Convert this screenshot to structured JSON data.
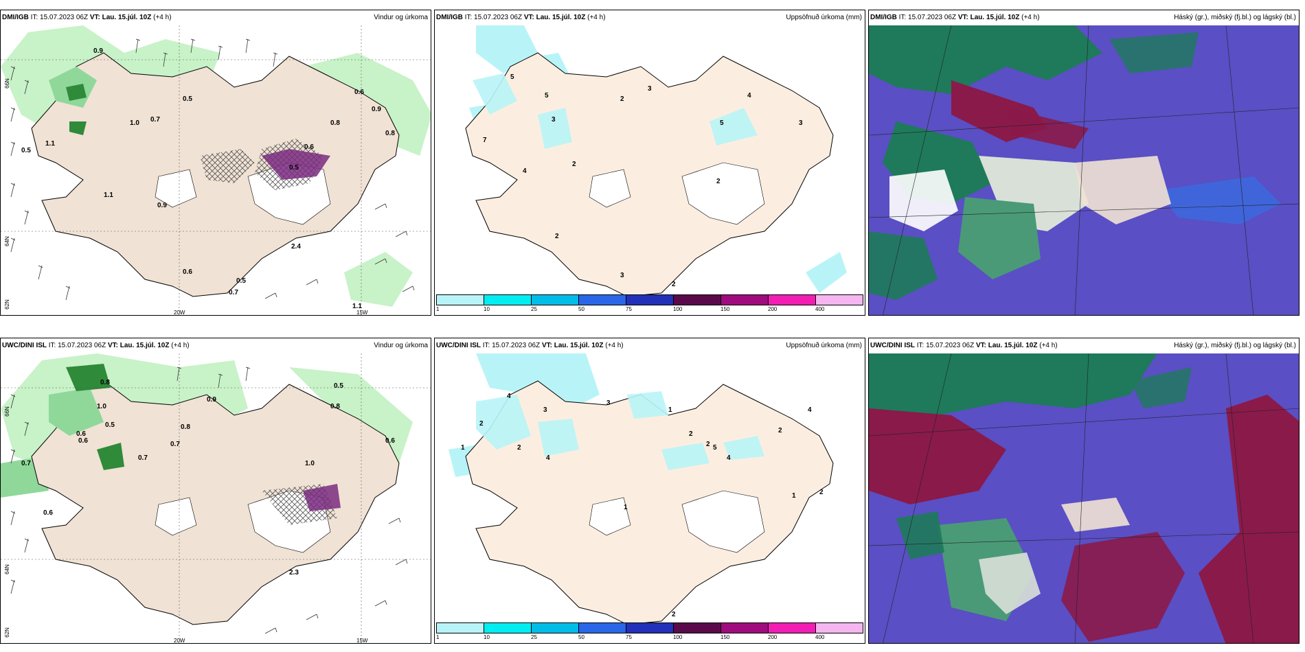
{
  "panels": [
    {
      "model": "DMI/IGB",
      "it_label": "IT:",
      "it": "15.07.2023 06Z",
      "vt_label": "VT:",
      "vt": "Lau. 15.júl. 10Z",
      "offset": "(+4 h)",
      "title": "Vindur og úrkoma"
    },
    {
      "model": "DMI/IGB",
      "it_label": "IT:",
      "it": "15.07.2023 06Z",
      "vt_label": "VT:",
      "vt": "Lau. 15.júl. 10Z",
      "offset": "(+4 h)",
      "title": "Uppsöfnuð úrkoma (mm)"
    },
    {
      "model": "DMI/IGB",
      "it_label": "IT:",
      "it": "15.07.2023 06Z",
      "vt_label": "VT:",
      "vt": "Lau. 15.júl. 10Z",
      "offset": "(+4 h)",
      "title": "Háský (gr.), miðský (fj.bl.) og lágský (bl.)"
    },
    {
      "model": "UWC/DINI ISL",
      "it_label": "IT:",
      "it": "15.07.2023 06Z",
      "vt_label": "VT:",
      "vt": "Lau. 15.júl. 10Z",
      "offset": "(+4 h)",
      "title": "Vindur og úrkoma"
    },
    {
      "model": "UWC/DINI ISL",
      "it_label": "IT:",
      "it": "15.07.2023 06Z",
      "vt_label": "VT:",
      "vt": "Lau. 15.júl. 10Z",
      "offset": "(+4 h)",
      "title": "Uppsöfnuð úrkoma (mm)"
    },
    {
      "model": "UWC/DINI ISL",
      "it_label": "IT:",
      "it": "15.07.2023 06Z",
      "vt_label": "VT:",
      "vt": "Lau. 15.júl. 10Z",
      "offset": "(+4 h)",
      "title": "Háský (gr.), miðský (fj.bl.) og lágský (bl.)"
    }
  ],
  "axes": {
    "lat_top": "66N",
    "lat_mid": "64N",
    "lat_bot": "62N",
    "lon_left": "20W",
    "lon_right": "15W"
  },
  "colorbar": {
    "ticks": [
      "1",
      "10",
      "25",
      "50",
      "75",
      "100",
      "150",
      "200",
      "400"
    ],
    "colors": [
      "#b8f4f7",
      "#00eef2",
      "#00bce9",
      "#2a66e8",
      "#2330b8",
      "#5a0a4a",
      "#a00b7e",
      "#f21eb3",
      "#f5b6f0"
    ]
  },
  "colors": {
    "land": "#f0e2d4",
    "precip_light": "#c8f2c8",
    "precip_mid": "#8fd89a",
    "precip_dark": "#2f8a3a",
    "cloud_high": "#5a4fc4",
    "cloud_mid": "#1a8a60",
    "cloud_low": "#a01050",
    "accum_light": "#b8f4f7"
  },
  "wind_values_top": [
    "0.9",
    "0.5",
    "0.6",
    "0.9",
    "0.8",
    "0.7",
    "1.0",
    "0.5",
    "1.1",
    "0.9",
    "0.6",
    "0.8",
    "0.5",
    "1.1",
    "0.6",
    "0.5",
    "0.7",
    "2.4",
    "1.1"
  ],
  "wind_values_bottom": [
    "0.9",
    "0.8",
    "1.0",
    "0.6",
    "0.7",
    "0.8",
    "0.5",
    "0.6",
    "0.8",
    "0.7",
    "0.6",
    "1.0",
    "0.7",
    "2.3",
    "0.5",
    "0.6"
  ],
  "accum_values_top": [
    "5",
    "5",
    "3",
    "2",
    "4",
    "3",
    "5",
    "2",
    "3",
    "7",
    "4",
    "2",
    "2",
    "3",
    "2"
  ],
  "accum_values_bottom": [
    "4",
    "2",
    "3",
    "1",
    "2",
    "4",
    "3",
    "1",
    "2",
    "2",
    "5",
    "4",
    "2",
    "1",
    "1",
    "2",
    "4",
    "2"
  ]
}
